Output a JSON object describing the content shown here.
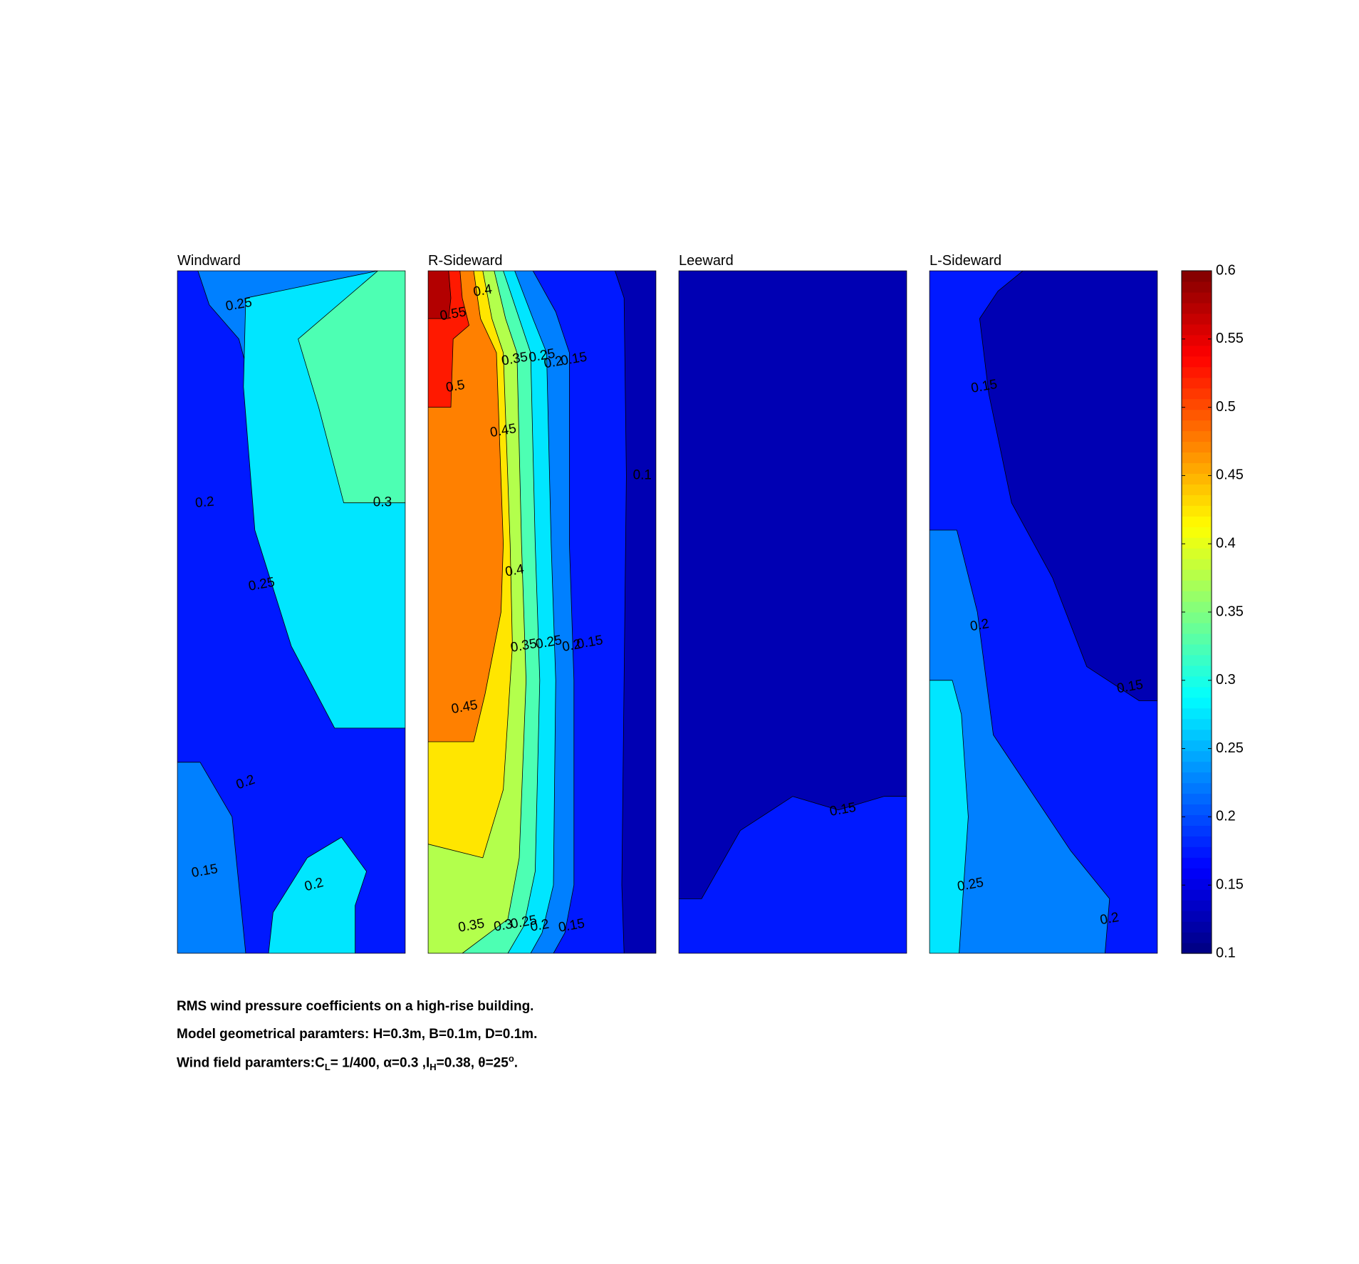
{
  "chart_data": {
    "type": "contour",
    "colormap": "jet",
    "clim": [
      0.1,
      0.6
    ],
    "levels": [
      0.1,
      0.15,
      0.2,
      0.25,
      0.3,
      0.35,
      0.4,
      0.45,
      0.5,
      0.55,
      0.6
    ],
    "colorbar": {
      "ticks": [
        "0.1",
        "0.15",
        "0.2",
        "0.25",
        "0.3",
        "0.35",
        "0.4",
        "0.45",
        "0.5",
        "0.55",
        "0.6"
      ]
    },
    "panels": [
      {
        "title": "Windward",
        "regions": [
          {
            "value": 0.175,
            "points": [
              [
                0,
                0
              ],
              [
                1,
                0
              ],
              [
                1,
                1
              ],
              [
                0,
                1
              ]
            ]
          },
          {
            "value": 0.225,
            "points": [
              [
                0.3,
                0
              ],
              [
                0.9,
                0
              ],
              [
                1,
                0.1
              ],
              [
                1,
                0.35
              ],
              [
                0.7,
                0.34
              ],
              [
                0.55,
                0.27
              ],
              [
                0.35,
                0.2
              ],
              [
                0.27,
                0.1
              ],
              [
                0.14,
                0.05
              ],
              [
                0.09,
                0.0
              ]
            ]
          },
          {
            "value": 0.225,
            "points": [
              [
                0.3,
                1
              ],
              [
                0.24,
                0.8
              ],
              [
                0.1,
                0.72
              ],
              [
                0,
                0.72
              ],
              [
                0,
                1
              ],
              [
                0.3,
                1
              ]
            ]
          },
          {
            "value": 0.275,
            "points": [
              [
                0.88,
                0
              ],
              [
                1,
                0
              ],
              [
                1,
                0.67
              ],
              [
                0.69,
                0.67
              ],
              [
                0.5,
                0.55
              ],
              [
                0.34,
                0.38
              ],
              [
                0.29,
                0.17
              ],
              [
                0.3,
                0.04
              ]
            ]
          },
          {
            "value": 0.275,
            "points": [
              [
                0.45,
                1
              ],
              [
                0.78,
                1
              ],
              [
                0.78,
                0.93
              ],
              [
                0.83,
                0.88
              ],
              [
                0.72,
                0.83
              ],
              [
                0.57,
                0.86
              ],
              [
                0.42,
                0.94
              ],
              [
                0.4,
                1
              ]
            ]
          },
          {
            "value": 0.325,
            "points": [
              [
                0.88,
                0
              ],
              [
                1,
                0
              ],
              [
                1,
                0.34
              ],
              [
                0.73,
                0.34
              ],
              [
                0.62,
                0.2
              ],
              [
                0.53,
                0.1
              ]
            ]
          }
        ],
        "labels": [
          {
            "text": "0.25",
            "x": 0.27,
            "y": 0.05,
            "rot": -10
          },
          {
            "text": "0.2",
            "x": 0.12,
            "y": 0.34,
            "rot": -5
          },
          {
            "text": "0.3",
            "x": 0.9,
            "y": 0.34,
            "rot": 0
          },
          {
            "text": "0.25",
            "x": 0.37,
            "y": 0.46,
            "rot": -10
          },
          {
            "text": "0.2",
            "x": 0.3,
            "y": 0.75,
            "rot": -20
          },
          {
            "text": "0.15",
            "x": 0.12,
            "y": 0.88,
            "rot": -10
          },
          {
            "text": "0.2",
            "x": 0.6,
            "y": 0.9,
            "rot": -15
          }
        ]
      },
      {
        "title": "R-Sideward",
        "regions": [
          {
            "value": 0.125,
            "points": [
              [
                0,
                0
              ],
              [
                1,
                0
              ],
              [
                1,
                1
              ],
              [
                0,
                1
              ]
            ]
          },
          {
            "value": 0.175,
            "points": [
              [
                0,
                0
              ],
              [
                0.82,
                0
              ],
              [
                0.86,
                0.04
              ],
              [
                0.87,
                0.3
              ],
              [
                0.86,
                0.6
              ],
              [
                0.85,
                0.9
              ],
              [
                0.86,
                1
              ],
              [
                0,
                1
              ]
            ]
          },
          {
            "value": 0.225,
            "points": [
              [
                0,
                0
              ],
              [
                0.46,
                0
              ],
              [
                0.56,
                0.06
              ],
              [
                0.62,
                0.12
              ],
              [
                0.62,
                0.4
              ],
              [
                0.64,
                0.6
              ],
              [
                0.64,
                0.9
              ],
              [
                0.6,
                0.97
              ],
              [
                0.55,
                1
              ],
              [
                0,
                1
              ]
            ]
          },
          {
            "value": 0.275,
            "points": [
              [
                0,
                0
              ],
              [
                0.38,
                0
              ],
              [
                0.46,
                0.07
              ],
              [
                0.52,
                0.12
              ],
              [
                0.54,
                0.4
              ],
              [
                0.56,
                0.6
              ],
              [
                0.55,
                0.9
              ],
              [
                0.5,
                0.97
              ],
              [
                0.45,
                1
              ],
              [
                0,
                1
              ]
            ]
          },
          {
            "value": 0.325,
            "points": [
              [
                0,
                0
              ],
              [
                0.33,
                0
              ],
              [
                0.4,
                0.07
              ],
              [
                0.45,
                0.12
              ],
              [
                0.47,
                0.4
              ],
              [
                0.49,
                0.6
              ],
              [
                0.47,
                0.88
              ],
              [
                0.42,
                0.96
              ],
              [
                0.35,
                1
              ],
              [
                0,
                1
              ]
            ]
          },
          {
            "value": 0.375,
            "points": [
              [
                0,
                0
              ],
              [
                0.29,
                0
              ],
              [
                0.34,
                0.07
              ],
              [
                0.39,
                0.12
              ],
              [
                0.41,
                0.4
              ],
              [
                0.43,
                0.6
              ],
              [
                0.4,
                0.86
              ],
              [
                0.35,
                0.95
              ],
              [
                0.15,
                1
              ],
              [
                0,
                1
              ]
            ]
          },
          {
            "value": 0.425,
            "points": [
              [
                0,
                0
              ],
              [
                0.24,
                0
              ],
              [
                0.28,
                0.07
              ],
              [
                0.33,
                0.12
              ],
              [
                0.36,
                0.4
              ],
              [
                0.37,
                0.55
              ],
              [
                0.33,
                0.76
              ],
              [
                0.24,
                0.86
              ],
              [
                0,
                0.84
              ]
            ]
          },
          {
            "value": 0.475,
            "points": [
              [
                0,
                0
              ],
              [
                0.2,
                0
              ],
              [
                0.23,
                0.07
              ],
              [
                0.3,
                0.12
              ],
              [
                0.33,
                0.4
              ],
              [
                0.32,
                0.5
              ],
              [
                0.25,
                0.62
              ],
              [
                0.2,
                0.69
              ],
              [
                0,
                0.69
              ]
            ]
          },
          {
            "value": 0.525,
            "points": [
              [
                0,
                0
              ],
              [
                0.14,
                0
              ],
              [
                0.15,
                0.04
              ],
              [
                0.18,
                0.08
              ],
              [
                0.11,
                0.1
              ],
              [
                0.1,
                0.2
              ],
              [
                0,
                0.2
              ]
            ]
          },
          {
            "value": 0.575,
            "points": [
              [
                0,
                0
              ],
              [
                0.09,
                0
              ],
              [
                0.1,
                0.04
              ],
              [
                0.09,
                0.07
              ],
              [
                0,
                0.07
              ]
            ]
          }
        ],
        "labels": [
          {
            "text": "0.4",
            "x": 0.24,
            "y": 0.03,
            "rot": -10
          },
          {
            "text": "0.55",
            "x": 0.11,
            "y": 0.064,
            "rot": -10
          },
          {
            "text": "0.35",
            "x": 0.38,
            "y": 0.13,
            "rot": -10
          },
          {
            "text": "0.25",
            "x": 0.5,
            "y": 0.125,
            "rot": -10
          },
          {
            "text": "0.2",
            "x": 0.55,
            "y": 0.135,
            "rot": -10
          },
          {
            "text": "0.15",
            "x": 0.64,
            "y": 0.13,
            "rot": -10
          },
          {
            "text": "0.5",
            "x": 0.12,
            "y": 0.17,
            "rot": -10
          },
          {
            "text": "0.45",
            "x": 0.33,
            "y": 0.235,
            "rot": -10
          },
          {
            "text": "0.1",
            "x": 0.94,
            "y": 0.3,
            "rot": 0
          },
          {
            "text": "0.4",
            "x": 0.38,
            "y": 0.44,
            "rot": -10
          },
          {
            "text": "0.35",
            "x": 0.42,
            "y": 0.55,
            "rot": -10
          },
          {
            "text": "0.25",
            "x": 0.53,
            "y": 0.545,
            "rot": -10
          },
          {
            "text": "0.2",
            "x": 0.63,
            "y": 0.55,
            "rot": -10
          },
          {
            "text": "0.15",
            "x": 0.71,
            "y": 0.545,
            "rot": -10
          },
          {
            "text": "0.45",
            "x": 0.16,
            "y": 0.64,
            "rot": -10
          },
          {
            "text": "0.35",
            "x": 0.19,
            "y": 0.96,
            "rot": -10
          },
          {
            "text": "0.3",
            "x": 0.33,
            "y": 0.96,
            "rot": -10
          },
          {
            "text": "0.25",
            "x": 0.42,
            "y": 0.955,
            "rot": -10
          },
          {
            "text": "0.2",
            "x": 0.49,
            "y": 0.96,
            "rot": -10
          },
          {
            "text": "0.15",
            "x": 0.63,
            "y": 0.96,
            "rot": -10
          }
        ]
      },
      {
        "title": "Leeward",
        "regions": [
          {
            "value": 0.125,
            "points": [
              [
                0,
                0
              ],
              [
                1,
                0
              ],
              [
                1,
                1
              ],
              [
                0,
                1
              ]
            ]
          },
          {
            "value": 0.175,
            "points": [
              [
                0,
                0.92
              ],
              [
                0.1,
                0.92
              ],
              [
                0.27,
                0.82
              ],
              [
                0.5,
                0.77
              ],
              [
                0.7,
                0.79
              ],
              [
                0.9,
                0.77
              ],
              [
                1,
                0.77
              ],
              [
                1,
                1
              ],
              [
                0,
                1
              ]
            ]
          }
        ],
        "labels": [
          {
            "text": "0.15",
            "x": 0.72,
            "y": 0.79,
            "rot": -10
          }
        ]
      },
      {
        "title": "L-Sideward",
        "regions": [
          {
            "value": 0.175,
            "points": [
              [
                0,
                0
              ],
              [
                1,
                0
              ],
              [
                1,
                1
              ],
              [
                0,
                1
              ]
            ]
          },
          {
            "value": 0.125,
            "points": [
              [
                0.41,
                0
              ],
              [
                1,
                0
              ],
              [
                1,
                0.63
              ],
              [
                0.92,
                0.63
              ],
              [
                0.69,
                0.58
              ],
              [
                0.54,
                0.45
              ],
              [
                0.36,
                0.34
              ],
              [
                0.26,
                0.18
              ],
              [
                0.22,
                0.07
              ],
              [
                0.3,
                0.03
              ]
            ]
          },
          {
            "value": 0.225,
            "points": [
              [
                0,
                0.38
              ],
              [
                0.12,
                0.38
              ],
              [
                0.21,
                0.5
              ],
              [
                0.28,
                0.68
              ],
              [
                0.62,
                0.85
              ],
              [
                0.79,
                0.92
              ],
              [
                0.77,
                1
              ],
              [
                0,
                1
              ]
            ]
          },
          {
            "value": 0.275,
            "points": [
              [
                0,
                0.6
              ],
              [
                0.1,
                0.6
              ],
              [
                0.14,
                0.65
              ],
              [
                0.17,
                0.8
              ],
              [
                0.15,
                0.9
              ],
              [
                0.13,
                1
              ],
              [
                0,
                1
              ]
            ]
          }
        ],
        "labels": [
          {
            "text": "0.15",
            "x": 0.24,
            "y": 0.17,
            "rot": -10
          },
          {
            "text": "0.2",
            "x": 0.22,
            "y": 0.52,
            "rot": -10
          },
          {
            "text": "0.15",
            "x": 0.88,
            "y": 0.61,
            "rot": -10
          },
          {
            "text": "0.25",
            "x": 0.18,
            "y": 0.9,
            "rot": -10
          },
          {
            "text": "0.2",
            "x": 0.79,
            "y": 0.95,
            "rot": -10
          }
        ]
      }
    ]
  },
  "caption": {
    "line1": "RMS wind pressure coefficients on a high-rise building.",
    "line2": "Model geometrical paramters: H=0.3m, B=0.1m, D=0.1m.",
    "line3_prefix": "Wind field paramters:C",
    "line3_sub1": "L",
    "line3_mid1": "= 1/400, α=0.3 ,I",
    "line3_sub2": "H",
    "line3_mid2": "=0.38, θ=25",
    "line3_sup": "o",
    "line3_suffix": "."
  }
}
